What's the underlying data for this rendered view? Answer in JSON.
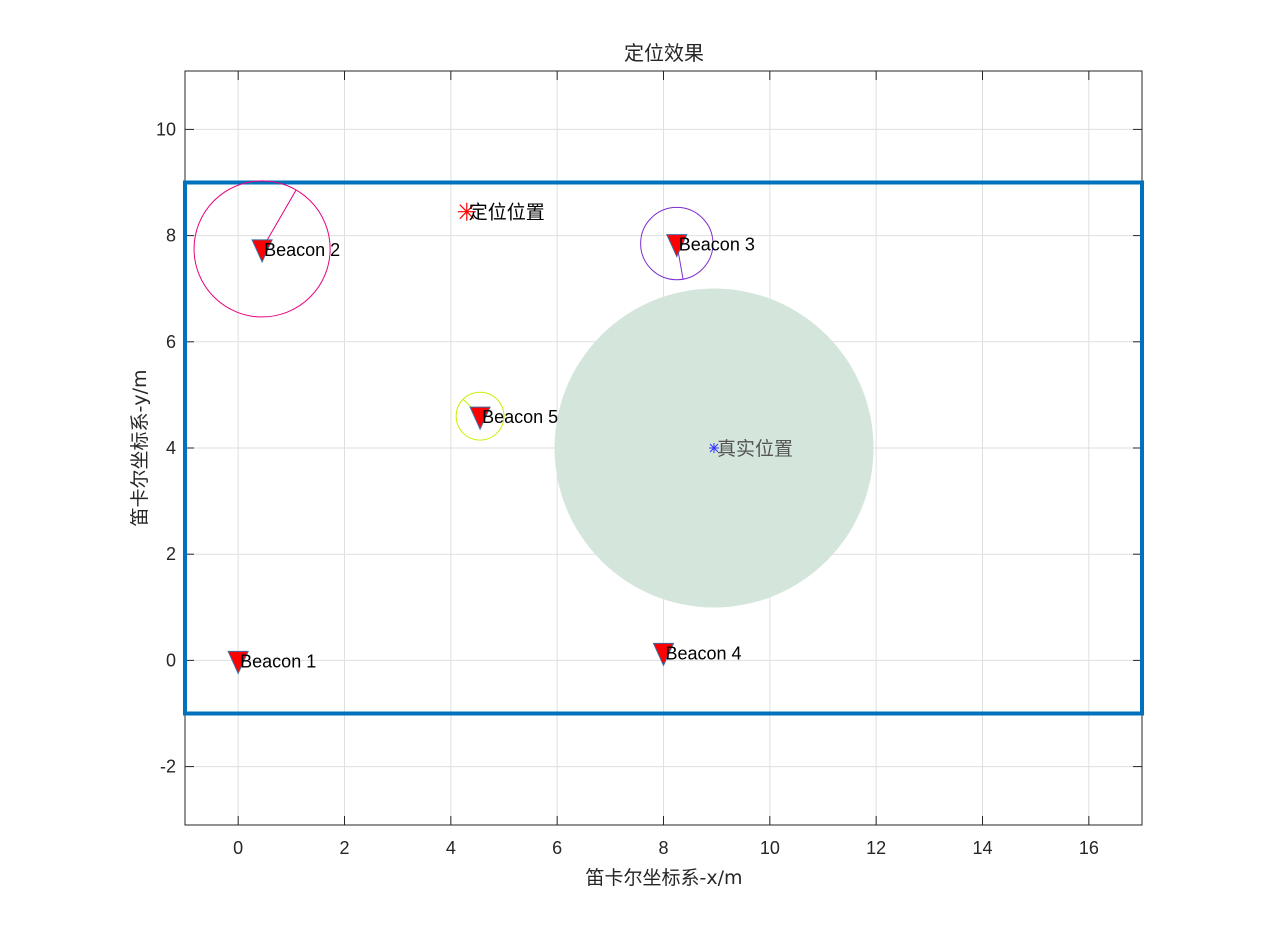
{
  "chart_data": {
    "type": "scatter",
    "title": "定位效果",
    "xlabel": "笛卡尔坐标系-x/m",
    "ylabel": "笛卡尔坐标系-y/m",
    "xlim": [
      -1,
      17
    ],
    "ylim": [
      -3.1,
      11.1
    ],
    "xticks": [
      0,
      2,
      4,
      6,
      8,
      10,
      12,
      14,
      16
    ],
    "yticks": [
      -2,
      0,
      2,
      4,
      6,
      8,
      10
    ],
    "grid": true,
    "room_boundary": {
      "x": [
        -1,
        17
      ],
      "y": [
        -1,
        9
      ],
      "color": "#0072BD"
    },
    "beacons": [
      {
        "label": "Beacon 1",
        "x": 0,
        "y": 0
      },
      {
        "label": "Beacon 2",
        "x": 0.45,
        "y": 7.75,
        "range": 1.28,
        "circle_color": "#E6007E"
      },
      {
        "label": "Beacon 3",
        "x": 8.25,
        "y": 7.85,
        "range": 0.68,
        "circle_color": "#7E2FCF"
      },
      {
        "label": "Beacon 4",
        "x": 8,
        "y": 0.15
      },
      {
        "label": "Beacon 5",
        "x": 4.55,
        "y": 4.6,
        "range": 0.45,
        "circle_color": "#C8F000"
      }
    ],
    "beacon_marker_color": "#FF0000",
    "true_position": {
      "label": "真实位置",
      "x": 8.95,
      "y": 4,
      "radius": 3,
      "color": "#3333FF",
      "area_color": "#D4E6DC"
    },
    "estimated_position": {
      "label": "定位位置",
      "x": 4.3,
      "y": 8.45,
      "color": "#FF0000"
    }
  }
}
